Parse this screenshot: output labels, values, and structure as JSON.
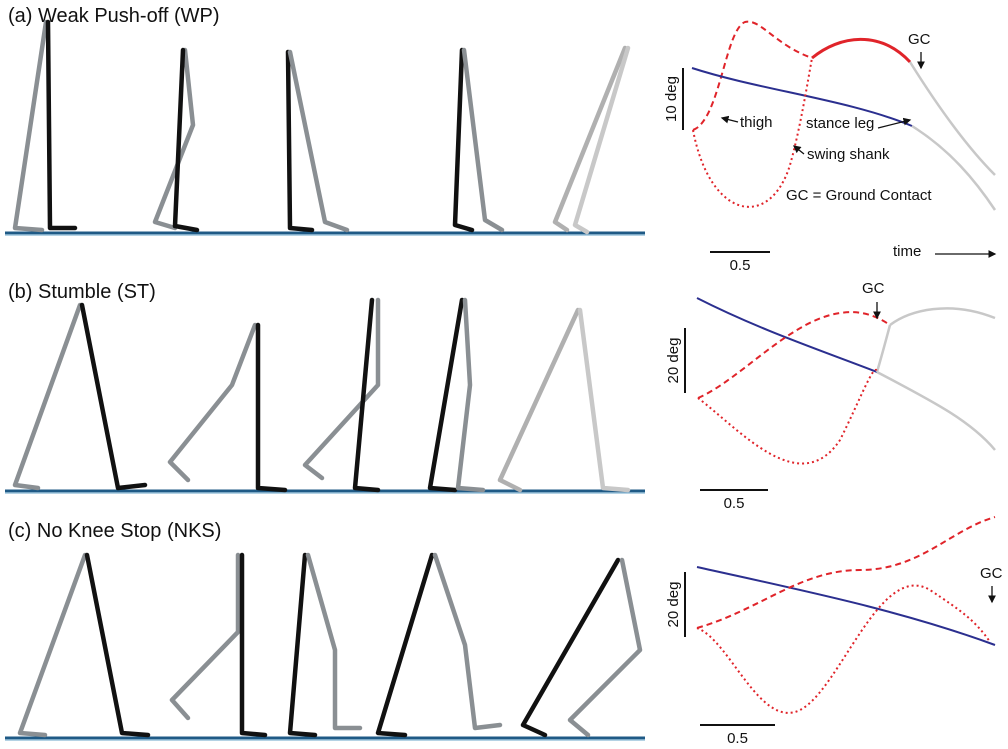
{
  "panels": [
    {
      "title": "(a) Weak Push-off (WP)",
      "scale_y": "10 deg",
      "scale_x": "0.5",
      "annotations": [
        "GC",
        "thigh",
        "stance leg",
        "swing shank",
        "GC = Ground Contact",
        "time"
      ]
    },
    {
      "title": "(b) Stumble (ST)",
      "scale_y": "20 deg",
      "scale_x": "0.5",
      "annotations": [
        "GC"
      ]
    },
    {
      "title": "(c) No Knee Stop (NKS)",
      "scale_y": "20 deg",
      "scale_x": "0.5",
      "annotations": [
        "GC"
      ]
    }
  ]
}
